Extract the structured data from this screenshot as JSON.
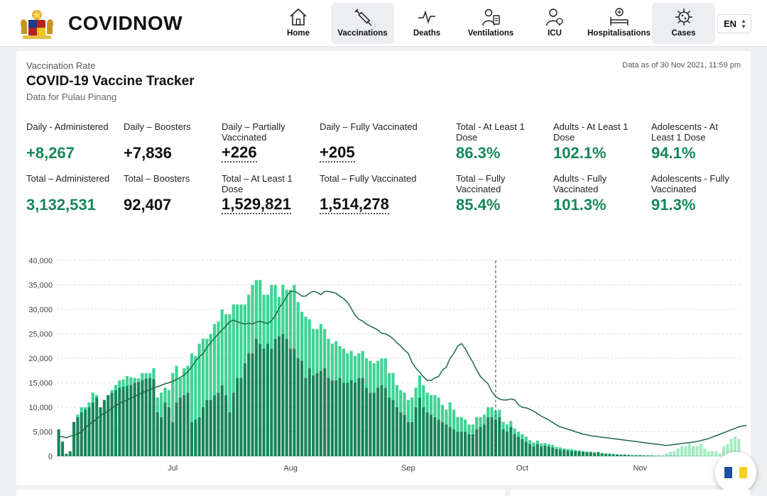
{
  "brand": {
    "name": "COVIDNOW"
  },
  "nav": {
    "items": [
      {
        "label": "Home",
        "icon": "home-icon"
      },
      {
        "label": "Vaccinations",
        "icon": "syringe-icon"
      },
      {
        "label": "Deaths",
        "icon": "pulse-icon"
      },
      {
        "label": "Ventilations",
        "icon": "ventilator-icon"
      },
      {
        "label": "ICU",
        "icon": "doctor-icon"
      },
      {
        "label": "Hospitalisations",
        "icon": "hospital-bed-icon"
      },
      {
        "label": "Cases",
        "icon": "virus-icon"
      }
    ],
    "active": "Vaccinations",
    "language": "EN"
  },
  "header": {
    "eyebrow": "Vaccination Rate",
    "title": "COVID-19 Vaccine Tracker",
    "subtitle": "Data for Pulau Pinang",
    "as_of": "Data as of 30 Nov 2021, 11:59 pm"
  },
  "stats": {
    "daily_administered": {
      "label": "Daily - Administered",
      "value": "+8,267"
    },
    "daily_boosters": {
      "label": "Daily – Boosters",
      "value": "+7,836"
    },
    "daily_partial": {
      "label": "Daily – Partially Vaccinated",
      "value": "+226"
    },
    "daily_full": {
      "label": "Daily – Fully Vaccinated",
      "value": "+205"
    },
    "total_at_least_1": {
      "label": "Total - At Least 1 Dose",
      "value": "86.3%"
    },
    "adults_at_least_1": {
      "label": "Adults - At Least 1 Dose",
      "value": "102.1%"
    },
    "adolescents_at_least_1": {
      "label": "Adolescents - At Least 1 Dose",
      "value": "94.1%"
    },
    "total_administered": {
      "label": "Total – Administered",
      "value": "3,132,531"
    },
    "total_boosters": {
      "label": "Total – Boosters",
      "value": "92,407"
    },
    "total_partial": {
      "label": "Total – At Least 1 Dose",
      "value": "1,529,821"
    },
    "total_full": {
      "label": "Total – Fully Vaccinated",
      "value": "1,514,278"
    },
    "total_fully_pct": {
      "label": "Total – Fully Vaccinated",
      "value": "85.4%"
    },
    "adults_fully": {
      "label": "Adults - Fully Vaccinated",
      "value": "101.3%"
    },
    "adolescents_fully": {
      "label": "Adolescents - Fully Vaccinated",
      "value": "91.3%"
    }
  },
  "colors": {
    "accent_green": "#16875a",
    "dose1": "#17855a",
    "dose2": "#3ed394",
    "booster": "#a4ecc3",
    "line": "#1d6b45"
  },
  "chart_data": {
    "type": "bar",
    "stacked": true,
    "title": "",
    "xlabel": "",
    "ylabel": "",
    "ylim": [
      0,
      40000
    ],
    "yticks": [
      0,
      5000,
      10000,
      15000,
      20000,
      25000,
      30000,
      35000,
      40000
    ],
    "ytick_labels": [
      "0",
      "5,000",
      "10,000",
      "15,000",
      "20,000",
      "25,000",
      "30,000",
      "35,000",
      "40,000"
    ],
    "x_start": "2021-06-01",
    "xticks": [
      {
        "date": "2021-07-01",
        "label": "Jul"
      },
      {
        "date": "2021-08-01",
        "label": "Aug"
      },
      {
        "date": "2021-09-01",
        "label": "Sep"
      },
      {
        "date": "2021-10-01",
        "label": "Oct"
      },
      {
        "date": "2021-11-01",
        "label": "Nov"
      }
    ],
    "reference_line_date": "2021-09-24",
    "grid": true,
    "series": [
      {
        "name": "",
        "role": "dose1",
        "values": [
          5500,
          3000,
          500,
          1000,
          7000,
          8000,
          9000,
          9500,
          10000,
          11000,
          12000,
          10000,
          11500,
          12500,
          13000,
          13500,
          14000,
          14200,
          14400,
          14600,
          15000,
          15200,
          15600,
          15900,
          16000,
          15800,
          9000,
          8000,
          11000,
          10000,
          7000,
          11000,
          12000,
          12500,
          13000,
          7000,
          7500,
          8000,
          10000,
          11500,
          11500,
          12500,
          13000,
          14500,
          12500,
          9000,
          13000,
          16000,
          16000,
          19000,
          21000,
          21000,
          24000,
          23000,
          22000,
          23000,
          22000,
          24000,
          24500,
          25000,
          24000,
          22000,
          22000,
          20000,
          19500,
          16000,
          18000,
          16500,
          17000,
          17500,
          18000,
          16000,
          15500,
          15500,
          16000,
          15000,
          15000,
          15500,
          15000,
          16000,
          16000,
          14000,
          13000,
          13000,
          14000,
          14500,
          14000,
          12000,
          11500,
          10000,
          9000,
          8500,
          7000,
          7000,
          10000,
          12000,
          10000,
          9000,
          8500,
          8000,
          7500,
          7000,
          6500,
          6000,
          5500,
          5000,
          5000,
          5000,
          4500,
          4500,
          5500,
          6000,
          6500,
          8000,
          8000,
          7500,
          8000,
          5500,
          5000,
          6000,
          4500,
          4000,
          3500,
          3000,
          2500,
          2000,
          2500,
          2000,
          2200,
          2000,
          1800,
          1500,
          1400,
          1300,
          1200,
          1100,
          1000,
          1000,
          900,
          800,
          800,
          700,
          800,
          600,
          500,
          450,
          400,
          350,
          300,
          300,
          250,
          200,
          200,
          200,
          150,
          150,
          150,
          100,
          100,
          100,
          80,
          80,
          80,
          70,
          60,
          60,
          50,
          50,
          40,
          40,
          40,
          40,
          30,
          30,
          30,
          30,
          20,
          20,
          20,
          20
        ]
      },
      {
        "name": "",
        "role": "dose2",
        "values": [
          0,
          0,
          0,
          0,
          0,
          500,
          1000,
          500,
          1000,
          2000,
          500,
          0,
          0,
          0,
          500,
          1000,
          1500,
          1500,
          2000,
          1500,
          1000,
          700,
          1400,
          1100,
          1000,
          2200,
          3000,
          5000,
          3000,
          3500,
          10000,
          7500,
          4000,
          5500,
          5500,
          14000,
          13000,
          15000,
          14000,
          12500,
          13500,
          14500,
          14500,
          15500,
          16500,
          20000,
          18000,
          15000,
          15000,
          12000,
          12000,
          14000,
          12000,
          13000,
          11000,
          10000,
          13000,
          11000,
          8000,
          10000,
          10000,
          12000,
          13000,
          11500,
          10000,
          12500,
          10000,
          9500,
          9000,
          9500,
          8000,
          8000,
          7500,
          8000,
          6500,
          7000,
          6000,
          6000,
          5500,
          5000,
          5500,
          6000,
          6500,
          6000,
          5500,
          5500,
          6000,
          5000,
          5500,
          4500,
          4500,
          4500,
          4500,
          5000,
          4000,
          4500,
          4500,
          4000,
          4000,
          4500,
          4500,
          3500,
          3000,
          5000,
          4000,
          3000,
          3000,
          2500,
          2000,
          2000,
          2500,
          2000,
          2000,
          2000,
          2000,
          1800,
          1500,
          1500,
          1500,
          1200,
          1200,
          1000,
          1000,
          1000,
          800,
          800,
          700,
          600,
          500,
          500,
          500,
          400,
          400,
          300,
          300,
          300,
          300,
          200,
          200,
          150,
          150,
          150,
          100,
          100,
          100,
          100,
          100,
          100,
          80,
          80,
          80,
          60,
          60,
          60,
          60,
          50,
          50,
          50,
          50,
          40,
          40,
          40,
          40,
          30,
          30,
          30,
          30,
          30,
          30,
          20,
          20,
          20,
          20,
          20,
          20,
          20
        ]
      },
      {
        "name": "",
        "role": "booster",
        "values": [
          0,
          0,
          0,
          0,
          0,
          0,
          0,
          0,
          0,
          0,
          0,
          0,
          0,
          0,
          0,
          0,
          0,
          0,
          0,
          0,
          0,
          0,
          0,
          0,
          0,
          0,
          0,
          0,
          0,
          0,
          0,
          0,
          0,
          0,
          0,
          0,
          0,
          0,
          0,
          0,
          0,
          0,
          0,
          0,
          0,
          0,
          0,
          0,
          0,
          0,
          0,
          0,
          0,
          0,
          0,
          0,
          0,
          0,
          0,
          0,
          0,
          0,
          0,
          0,
          0,
          0,
          0,
          0,
          0,
          0,
          0,
          0,
          0,
          0,
          0,
          0,
          0,
          0,
          0,
          0,
          0,
          0,
          0,
          0,
          0,
          0,
          0,
          0,
          0,
          0,
          0,
          0,
          0,
          0,
          0,
          0,
          0,
          0,
          0,
          0,
          0,
          0,
          0,
          0,
          0,
          0,
          0,
          0,
          0,
          0,
          0,
          0,
          0,
          0,
          0,
          0,
          0,
          0,
          0,
          0,
          0,
          0,
          0,
          0,
          0,
          0,
          0,
          0,
          0,
          0,
          0,
          0,
          0,
          0,
          0,
          0,
          0,
          0,
          0,
          0,
          0,
          0,
          0,
          0,
          0,
          0,
          0,
          0,
          0,
          0,
          0,
          0,
          0,
          0,
          0,
          0,
          0,
          0,
          0,
          0,
          500,
          800,
          1000,
          1500,
          2000,
          2000,
          2500,
          2000,
          2000,
          2500,
          1500,
          1000,
          1000,
          1000,
          500,
          2000,
          2500,
          3500,
          4000,
          3500,
          2500,
          3500,
          3000,
          5000,
          5500,
          6500,
          5000,
          6000,
          5500,
          6000,
          7000
        ]
      },
      {
        "name": "",
        "role": "7-day-average",
        "type": "line",
        "values": [
          4000,
          4000,
          3800,
          4100,
          4300,
          4600,
          5000,
          5800,
          6500,
          7000,
          7600,
          8300,
          8800,
          9200,
          9800,
          10300,
          10800,
          11200,
          11500,
          11900,
          12200,
          12600,
          13000,
          13300,
          13600,
          14000,
          14200,
          14500,
          14800,
          15000,
          15300,
          15700,
          16100,
          16600,
          17300,
          18200,
          19400,
          20300,
          21000,
          22200,
          23200,
          24100,
          25000,
          25800,
          26600,
          27500,
          27800,
          27500,
          27200,
          27000,
          27200,
          27000,
          27400,
          27600,
          27300,
          27100,
          27700,
          28700,
          30300,
          31300,
          32700,
          33700,
          33700,
          33300,
          32700,
          32700,
          33300,
          33700,
          33500,
          33000,
          33700,
          33700,
          33500,
          33300,
          32700,
          32200,
          31400,
          30200,
          28800,
          28000,
          27600,
          27000,
          26600,
          26200,
          25800,
          25100,
          25000,
          24600,
          24000,
          23200,
          22500,
          21700,
          21000,
          19200,
          18000,
          17200,
          16200,
          15500,
          15500,
          16000,
          16300,
          17600,
          18200,
          20000,
          21000,
          22500,
          23000,
          22000,
          20500,
          19200,
          17600,
          16300,
          15500,
          14800,
          13200,
          12200,
          11700,
          11500,
          11500,
          11700,
          11500,
          10500,
          10000,
          9900,
          9600,
          9200,
          8700,
          8200,
          7800,
          7400,
          6900,
          6400,
          6000,
          5800,
          5500,
          5300,
          5000,
          4800,
          4500,
          4400,
          4200,
          4100,
          4000,
          3900,
          3800,
          3700,
          3600,
          3500,
          3400,
          3300,
          3200,
          3100,
          3000,
          2900,
          2800,
          2700,
          2600,
          2500,
          2400,
          2300,
          2200,
          2300,
          2400,
          2500,
          2600,
          2700,
          2800,
          2900,
          3000,
          3200,
          3400,
          3600,
          3900,
          4200,
          4500,
          4800,
          5100,
          5400,
          5700,
          6000,
          6200,
          6300
        ]
      }
    ]
  },
  "fab": {
    "icon": "state-flag-icon"
  }
}
